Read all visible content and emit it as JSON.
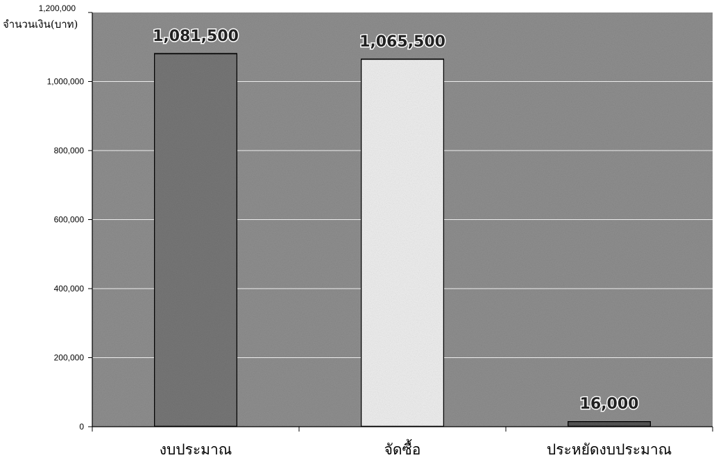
{
  "chart_data": {
    "type": "bar",
    "title": "",
    "ylabel": "จำนวนเงิน(บาท)",
    "xlabel": "",
    "categories": [
      "งบประมาณ",
      "จัดซื้อ",
      "ประหยัดงบประมาณ"
    ],
    "values": [
      1081500,
      1065500,
      16000
    ],
    "data_labels": [
      "1,081,500",
      "1,065,500",
      "16,000"
    ],
    "ylim": [
      0,
      1200000
    ],
    "yticks": [
      0,
      200000,
      400000,
      600000,
      800000,
      1000000,
      1200000
    ],
    "ytick_labels": [
      "0",
      "200,000",
      "400,000",
      "600,000",
      "800,000",
      "1,000,000",
      "1,200,000"
    ],
    "grid": true,
    "legend": "none",
    "colors": {
      "plot_background": "#8f8f8f",
      "gridline": "#ffffff",
      "bars": [
        "#777777",
        "#efefef",
        "#555555"
      ],
      "bar_outline": "#000000"
    }
  }
}
